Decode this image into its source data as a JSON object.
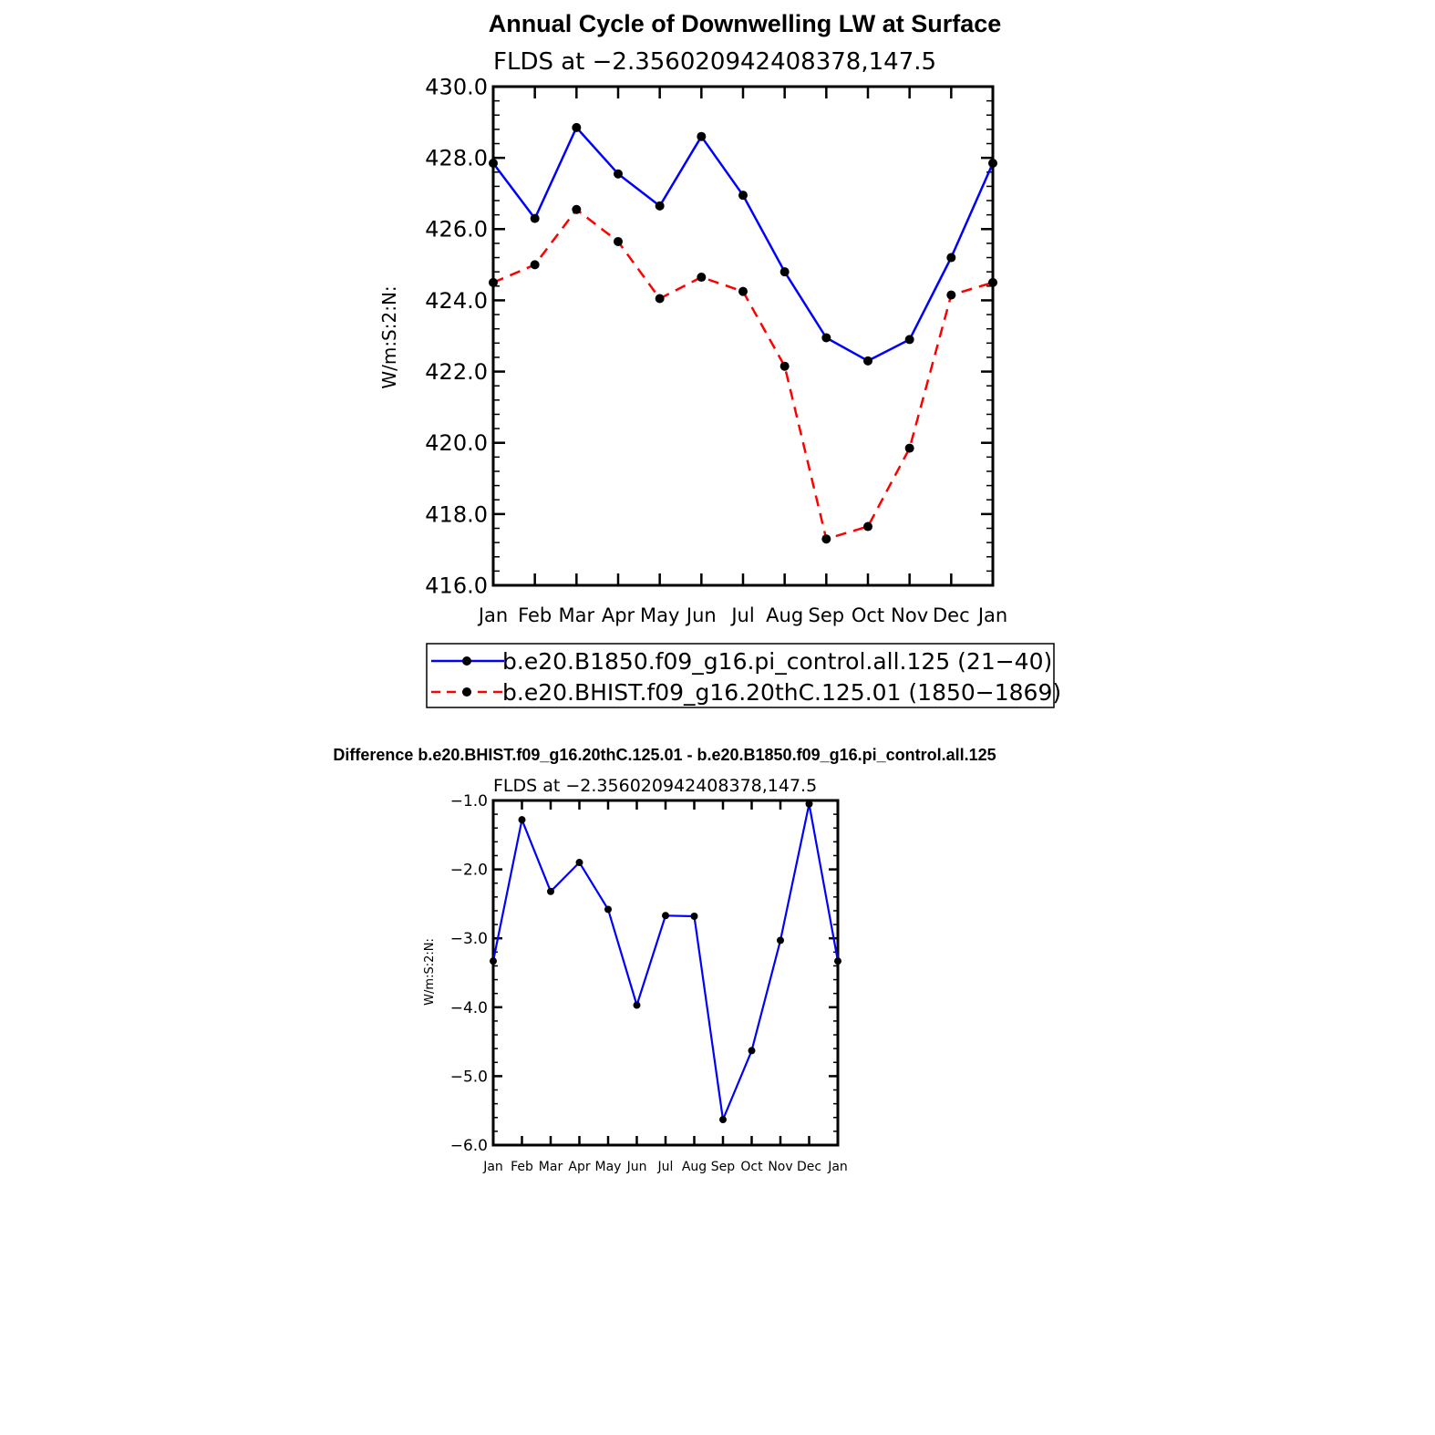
{
  "colors": {
    "series_control": "#0000ff",
    "series_hist": "#ff0000",
    "markers": "#000000"
  },
  "chart_data": [
    {
      "type": "line",
      "title": "Annual Cycle of Downwelling LW at Surface",
      "subtitle": "FLDS at −2.356020942408378,147.5",
      "ylabel": "W/m:S:2:N:",
      "xlabel": "",
      "categories": [
        "Jan",
        "Feb",
        "Mar",
        "Apr",
        "May",
        "Jun",
        "Jul",
        "Aug",
        "Sep",
        "Oct",
        "Nov",
        "Dec",
        "Jan"
      ],
      "ylim": [
        416.0,
        430.0
      ],
      "yticks": [
        "416.0",
        "418.0",
        "420.0",
        "422.0",
        "424.0",
        "426.0",
        "428.0",
        "430.0"
      ],
      "grid": false,
      "legend_position": "bottom",
      "series": [
        {
          "name": "b.e20.B1850.f09_g16.pi_control.all.125 (21−40)",
          "color": "#0000ff",
          "style": "solid",
          "values": [
            427.85,
            426.3,
            428.85,
            427.55,
            426.65,
            428.6,
            426.95,
            424.8,
            422.95,
            422.3,
            422.9,
            425.2,
            427.85
          ]
        },
        {
          "name": "b.e20.BHIST.f09_g16.20thC.125.01 (1850−1869)",
          "color": "#ff0000",
          "style": "dashed",
          "values": [
            424.5,
            425.0,
            426.55,
            425.65,
            424.05,
            424.65,
            424.25,
            422.15,
            417.3,
            417.65,
            419.85,
            424.15,
            424.5
          ]
        }
      ]
    },
    {
      "type": "line",
      "title": "Difference b.e20.BHIST.f09_g16.20thC.125.01 - b.e20.B1850.f09_g16.pi_control.all.125",
      "subtitle": "FLDS at −2.356020942408378,147.5",
      "ylabel": "W/m:S:2:N:",
      "xlabel": "",
      "categories": [
        "Jan",
        "Feb",
        "Mar",
        "Apr",
        "May",
        "Jun",
        "Jul",
        "Aug",
        "Sep",
        "Oct",
        "Nov",
        "Dec",
        "Jan"
      ],
      "ylim": [
        -6.0,
        -1.0
      ],
      "yticks": [
        "−6.0",
        "−5.0",
        "−4.0",
        "−3.0",
        "−2.0",
        "−1.0"
      ],
      "grid": false,
      "series": [
        {
          "color": "#0000ff",
          "style": "solid",
          "values": [
            -3.33,
            -1.28,
            -2.32,
            -1.9,
            -2.58,
            -3.97,
            -2.67,
            -2.68,
            -5.63,
            -4.63,
            -3.03,
            -1.05,
            -3.33
          ]
        }
      ]
    }
  ]
}
